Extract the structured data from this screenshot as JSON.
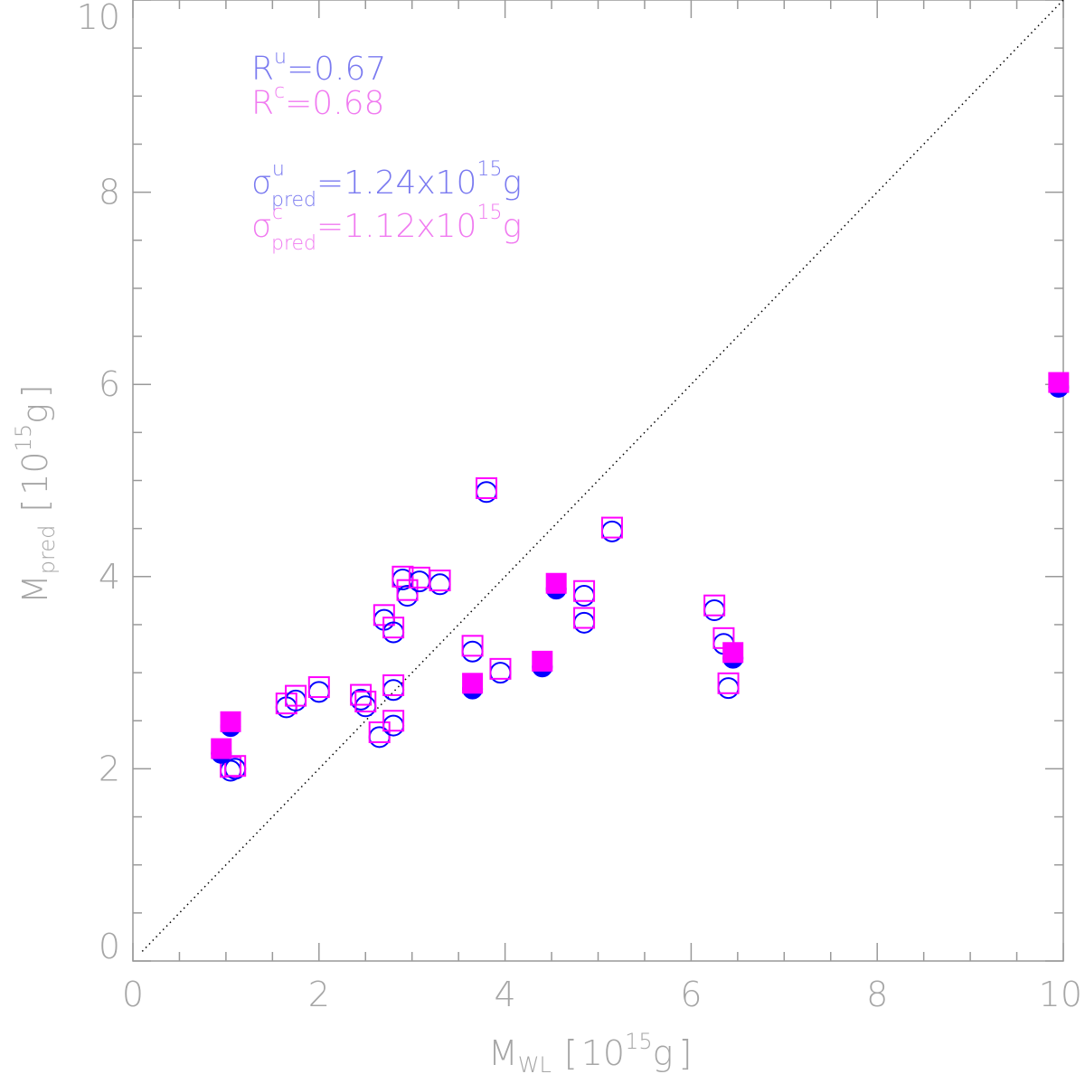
{
  "chart_data": {
    "type": "scatter",
    "xlabel": {
      "main": "M",
      "sub": "WL",
      "bracket_open": "[",
      "unit_base": "10",
      "unit_exp": "15",
      "unit_suffix": "g",
      "bracket_close": "]"
    },
    "ylabel": {
      "main": "M",
      "sub": "pred",
      "bracket_open": "[",
      "unit_base": "10",
      "unit_exp": "15",
      "unit_suffix": "g",
      "bracket_close": "]"
    },
    "xlim": [
      0,
      10
    ],
    "ylim": [
      0,
      10
    ],
    "x_ticks": [
      "0",
      "2",
      "4",
      "6",
      "8",
      "10"
    ],
    "y_ticks": [
      "0",
      "2",
      "4",
      "6",
      "8",
      "10"
    ],
    "x_minor_step": 0.5,
    "y_minor_step": 0.5,
    "diagonal": {
      "x": [
        0.1,
        10
      ],
      "y": [
        0.1,
        10
      ]
    },
    "stats": {
      "r_u": {
        "sym": "R",
        "sup": "u",
        "text": "=0.67"
      },
      "r_c": {
        "sym": "R",
        "sup": "c",
        "text": "=0.68"
      },
      "sigma_u": {
        "sym": "σ",
        "sup": "u",
        "sub": "pred",
        "text": "=1.24x10",
        "exp": "15",
        "unit": "g"
      },
      "sigma_c": {
        "sym": "σ",
        "sup": "c",
        "sub": "pred",
        "text": "=1.12x10",
        "exp": "15",
        "unit": "g"
      }
    },
    "colors": {
      "uncorrected": "#0000ff",
      "corrected": "#ff00ff",
      "axis": "#999999",
      "text": "#a6a6a6"
    },
    "series": [
      {
        "marker": "open",
        "points": [
          {
            "x": 1.05,
            "y_u": 1.98,
            "y_c": 2.02
          },
          {
            "x": 1.1,
            "y_u": 2.0,
            "y_c": 2.03
          },
          {
            "x": 1.65,
            "y_u": 2.64,
            "y_c": 2.68
          },
          {
            "x": 1.75,
            "y_u": 2.71,
            "y_c": 2.76
          },
          {
            "x": 2.0,
            "y_u": 2.8,
            "y_c": 2.85
          },
          {
            "x": 2.45,
            "y_u": 2.72,
            "y_c": 2.77
          },
          {
            "x": 2.5,
            "y_u": 2.65,
            "y_c": 2.7
          },
          {
            "x": 2.65,
            "y_u": 2.33,
            "y_c": 2.38
          },
          {
            "x": 2.7,
            "y_u": 3.55,
            "y_c": 3.6
          },
          {
            "x": 2.8,
            "y_u": 2.45,
            "y_c": 2.5
          },
          {
            "x": 2.8,
            "y_u": 2.82,
            "y_c": 2.87
          },
          {
            "x": 2.8,
            "y_u": 3.42,
            "y_c": 3.47
          },
          {
            "x": 2.9,
            "y_u": 3.97,
            "y_c": 4.0
          },
          {
            "x": 2.95,
            "y_u": 3.8,
            "y_c": 3.86
          },
          {
            "x": 3.08,
            "y_u": 3.95,
            "y_c": 3.99
          },
          {
            "x": 3.3,
            "y_u": 3.92,
            "y_c": 3.96
          },
          {
            "x": 3.65,
            "y_u": 3.22,
            "y_c": 3.28
          },
          {
            "x": 3.8,
            "y_u": 4.88,
            "y_c": 4.92
          },
          {
            "x": 3.95,
            "y_u": 3.0,
            "y_c": 3.04
          },
          {
            "x": 4.85,
            "y_u": 3.8,
            "y_c": 3.85
          },
          {
            "x": 4.85,
            "y_u": 3.52,
            "y_c": 3.57
          },
          {
            "x": 5.15,
            "y_u": 4.47,
            "y_c": 4.51
          },
          {
            "x": 6.25,
            "y_u": 3.65,
            "y_c": 3.7
          },
          {
            "x": 6.35,
            "y_u": 3.3,
            "y_c": 3.36
          },
          {
            "x": 6.4,
            "y_u": 2.84,
            "y_c": 2.89
          }
        ]
      },
      {
        "marker": "filled",
        "points": [
          {
            "x": 0.95,
            "y_u": 2.16,
            "y_c": 2.21
          },
          {
            "x": 1.05,
            "y_u": 2.44,
            "y_c": 2.49
          },
          {
            "x": 3.65,
            "y_u": 2.83,
            "y_c": 2.89
          },
          {
            "x": 4.4,
            "y_u": 3.06,
            "y_c": 3.12
          },
          {
            "x": 4.55,
            "y_u": 3.87,
            "y_c": 3.93
          },
          {
            "x": 6.45,
            "y_u": 3.15,
            "y_c": 3.21
          },
          {
            "x": 9.95,
            "y_u": 5.97,
            "y_c": 6.02
          }
        ]
      }
    ]
  }
}
